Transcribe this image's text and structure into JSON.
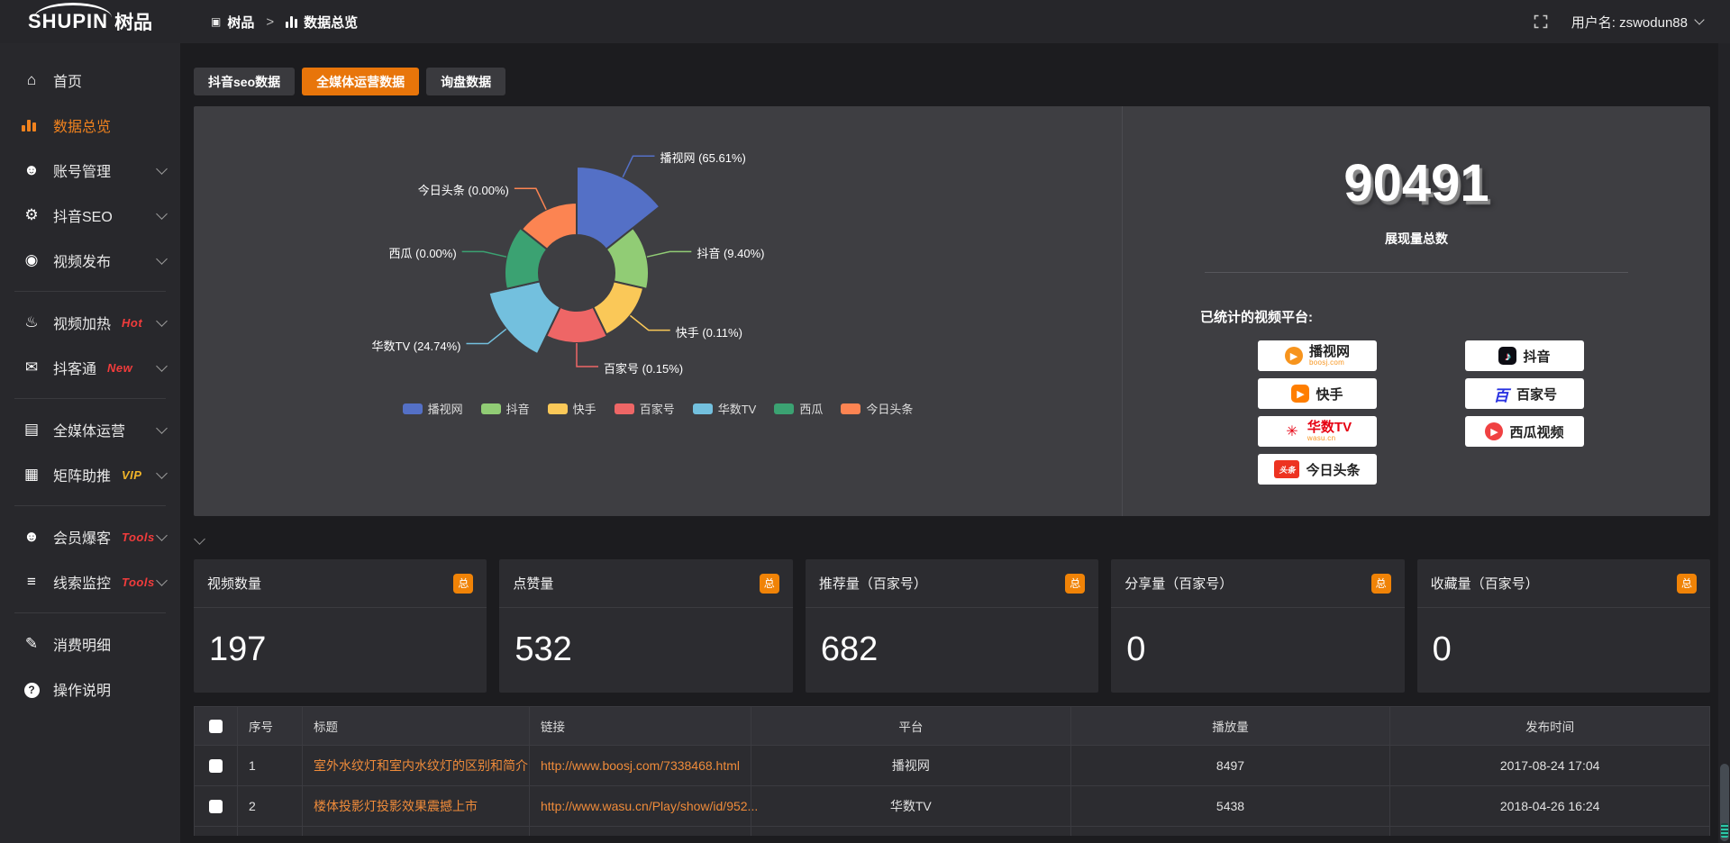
{
  "header": {
    "logo_en": "SHUPIN",
    "logo_cn": "树品",
    "breadcrumb": [
      "树品",
      "数据总览"
    ],
    "separator": ">",
    "username": "用户名: zswodun88"
  },
  "icons": {
    "home": "⌂",
    "user": "☻",
    "gear": "⚙",
    "video_publish": "◉",
    "video_heat": "♨",
    "chat": "✉",
    "media": "▤",
    "matrix": "▦",
    "member": "☻",
    "monitor": "≡",
    "expense": "✎",
    "help": "?",
    "breadcrumb_site": "▣",
    "play": "▶",
    "music_note": "♪",
    "star": "✳",
    "bai": "百",
    "toutiao_box": "头条"
  },
  "sidebar": {
    "items": [
      {
        "label": "首页"
      },
      {
        "label": "数据总览",
        "active": true
      },
      {
        "label": "账号管理",
        "expandable": true
      },
      {
        "label": "抖音SEO",
        "expandable": true
      },
      {
        "label": "视频发布",
        "expandable": true
      },
      {
        "label": "视频加热",
        "badge": "Hot",
        "badge_color": "#f23c3c",
        "expandable": true
      },
      {
        "label": "抖客通",
        "badge": "New",
        "badge_color": "#f23c3c",
        "expandable": true
      },
      {
        "label": "全媒体运营",
        "expandable": true
      },
      {
        "label": "矩阵助推",
        "badge": "VIP",
        "badge_color": "#f0b429",
        "expandable": true
      },
      {
        "label": "会员爆客",
        "badge": "Tools",
        "badge_color": "#f23c3c",
        "expandable": true
      },
      {
        "label": "线索监控",
        "badge": "Tools",
        "badge_color": "#f23c3c",
        "expandable": true
      },
      {
        "label": "消费明细"
      },
      {
        "label": "操作说明"
      }
    ]
  },
  "tabs": {
    "items": [
      "抖音seo数据",
      "全媒体运营数据",
      "询盘数据"
    ],
    "active_index": 1,
    "active_color": "#e8750a"
  },
  "chart_data": {
    "type": "pie",
    "subtype": "nightingale-rose",
    "items": [
      {
        "name": "播视网",
        "value_pct": 65.61,
        "label": "播视网 (65.61%)",
        "color": "#5470c6"
      },
      {
        "name": "抖音",
        "value_pct": 9.4,
        "label": "抖音 (9.40%)",
        "color": "#91cc75"
      },
      {
        "name": "快手",
        "value_pct": 0.11,
        "label": "快手 (0.11%)",
        "color": "#fac858"
      },
      {
        "name": "百家号",
        "value_pct": 0.15,
        "label": "百家号 (0.15%)",
        "color": "#ee6666"
      },
      {
        "name": "华数TV",
        "value_pct": 24.74,
        "label": "华数TV (24.74%)",
        "color": "#73c0de"
      },
      {
        "name": "西瓜",
        "value_pct": 0.0,
        "label": "西瓜 (0.00%)",
        "color": "#3ba272"
      },
      {
        "name": "今日头条",
        "value_pct": 0.0,
        "label": "今日头条 (0.00%)",
        "color": "#fc8452"
      }
    ],
    "display_radii": [
      118,
      80,
      76,
      78,
      100,
      80,
      78
    ],
    "inner_radius": 42,
    "legend_position": "bottom",
    "grid": false
  },
  "summary": {
    "value": "90491",
    "label": "展现量总数",
    "platforms_title": "已统计的视频平台:",
    "platforms": [
      {
        "name": "播视网",
        "sub": "boosj.com"
      },
      {
        "name": "抖音"
      },
      {
        "name": "快手"
      },
      {
        "name": "百家号"
      },
      {
        "name": "华数TV",
        "sub": "wasu.cn"
      },
      {
        "name": "西瓜视频"
      },
      {
        "name": "今日头条"
      }
    ]
  },
  "stat_cards": [
    {
      "title": "视频数量",
      "badge": "总",
      "value": "197"
    },
    {
      "title": "点赞量",
      "badge": "总",
      "value": "532"
    },
    {
      "title": "推荐量（百家号）",
      "badge": "总",
      "value": "682"
    },
    {
      "title": "分享量（百家号）",
      "badge": "总",
      "value": "0"
    },
    {
      "title": "收藏量（百家号）",
      "badge": "总",
      "value": "0"
    }
  ],
  "table": {
    "columns": [
      "序号",
      "标题",
      "链接",
      "平台",
      "播放量",
      "发布时间"
    ],
    "rows": [
      {
        "no": "1",
        "title": "室外水纹灯和室内水纹灯的区别和简介",
        "link": "http://www.boosj.com/7338468.html",
        "platform": "播视网",
        "plays": "8497",
        "time": "2017-08-24 17:04"
      },
      {
        "no": "2",
        "title": "楼体投影灯投影效果震撼上市",
        "link": "http://www.wasu.cn/Play/show/id/952...",
        "platform": "华数TV",
        "plays": "5438",
        "time": "2018-04-26 16:24"
      }
    ]
  }
}
